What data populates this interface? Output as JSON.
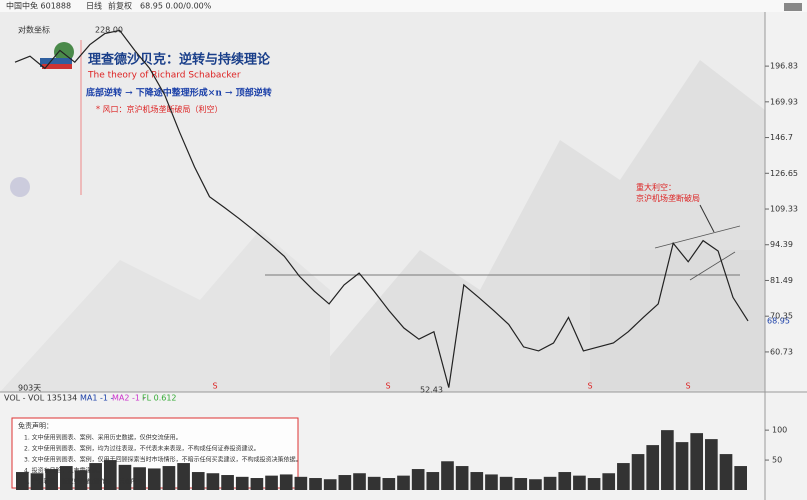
{
  "chart_data": {
    "type": "line",
    "header": {
      "stock": "中国中免 601888",
      "period": "日线",
      "adjust": "前复权",
      "quote": "68.95 0.00/0.00%",
      "scale_mode": "对数坐标"
    },
    "title": "理查德沙贝克：逆转与持续理论",
    "subtitle": "The theory of Richard Schabacker",
    "annotations": {
      "sequence": "底部逆转 → 下降途中整理形成×n → 顶部逆转",
      "note": "* 风口：京沪机场垄断破局（利空）",
      "callout_title": "重大利空：",
      "callout_text": "京沪机场垄断破局",
      "high": "228.00",
      "low": "52.43",
      "last": "68.95",
      "span": "903天",
      "signals": [
        "S",
        "S",
        "S",
        "S"
      ]
    },
    "log_scale": true,
    "ylim": [
      51.5,
      236
    ],
    "yticks": [
      60.73,
      70.35,
      81.49,
      94.39,
      109.33,
      126.65,
      146.7,
      169.93,
      196.83
    ],
    "series": [
      {
        "name": "收盘价",
        "color": "#222222",
        "values": [
          200,
          205,
          195,
          210,
          200,
          215,
          225,
          228,
          210,
          195,
          175,
          150,
          130,
          115,
          110,
          105,
          100,
          95,
          90,
          83,
          78,
          74,
          80,
          84,
          78,
          72,
          67,
          64,
          66,
          52.43,
          80,
          76,
          72,
          68,
          62,
          61,
          63,
          70,
          61,
          62,
          63,
          66,
          70,
          74,
          95,
          88,
          96,
          92,
          76,
          69
        ]
      }
    ],
    "volume": {
      "legend": [
        "VOL - VOL 135134",
        "MA1 -1 -",
        "MA2 -1 -",
        "FL 0.612"
      ],
      "color": "#333333",
      "ylim": [
        0,
        147
      ],
      "yticks": [
        50,
        100
      ],
      "values": [
        30,
        28,
        35,
        40,
        33,
        45,
        50,
        42,
        38,
        36,
        40,
        45,
        30,
        28,
        25,
        22,
        20,
        24,
        26,
        22,
        20,
        18,
        25,
        28,
        22,
        20,
        24,
        35,
        30,
        48,
        40,
        30,
        26,
        22,
        20,
        18,
        22,
        30,
        24,
        20,
        28,
        45,
        60,
        75,
        100,
        80,
        95,
        85,
        60,
        40
      ]
    },
    "disclaimer": {
      "title": "免责声明：",
      "lines": [
        "1. 文中使用到图表、案例、采用历史数据，仅供交流使用。",
        "2. 文中使用到图表、案例，均为过往表现，不代表未来表现，不构成任何证券投资建议。",
        "3. 文中使用到图表、案例，仅用于回顾探索当时市场情形，不暗示任何买卖建议，不构成投资决策依据。",
        "4. 投资有风险，入市需谨慎。",
        "5. 严禁转载，版权归作者/原作者 • 共创所有。"
      ]
    }
  }
}
